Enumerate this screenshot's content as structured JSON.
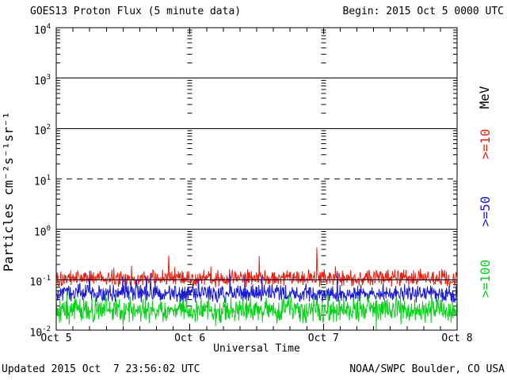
{
  "begin_label": "Begin: 2015 Oct 5 0000 UTC",
  "footer": {
    "updated": "Updated 2015 Oct  7 23:56:02 UTC",
    "source": "NOAA/SWPC Boulder, CO USA"
  },
  "chart_data": {
    "type": "line",
    "title": "GOES13 Proton Flux (5 minute data)",
    "xlabel": "Universal Time",
    "ylabel": "Particles cm⁻²s⁻¹sr⁻¹",
    "x_ticks": [
      "Oct 5",
      "Oct 6",
      "Oct 7",
      "Oct 8"
    ],
    "y_tick_exponents": [
      4,
      3,
      2,
      1,
      0,
      -1,
      -2
    ],
    "ylog_min": -2,
    "ylog_max": 4,
    "days": 3,
    "samples": 864,
    "cadence_minutes": 5,
    "x_minor_tick_hours": 3,
    "grid": {
      "solid_exponents": [
        3,
        2,
        0,
        -1
      ],
      "dashed_exponents": [
        1
      ],
      "day_gridline_style": "column-of-log-minor-dashes"
    },
    "legend": {
      "units": "MeV",
      "position": "right"
    },
    "series": [
      {
        "name": "p_gt10",
        "label": ">=10",
        "color": "#ed2010",
        "approx_log10_mean": -0.97,
        "approx_log10_spread": 0.2,
        "spike_prob": 0.04,
        "spike_log10": 0.3,
        "dip_prob": 0,
        "dip_log10": 0,
        "seed": 101
      },
      {
        "name": "p_gt50",
        "label": ">=50",
        "color": "#1a1ad2",
        "approx_log10_mean": -1.27,
        "approx_log10_spread": 0.21,
        "spike_prob": 0.03,
        "spike_log10": 0.45,
        "dip_prob": 0,
        "dip_log10": 0,
        "seed": 202
      },
      {
        "name": "p_gt100",
        "label": ">=100",
        "color": "#0bd01b",
        "approx_log10_mean": -1.6,
        "approx_log10_spread": 0.28,
        "spike_prob": 0.02,
        "spike_log10": 0.3,
        "dip_prob": 0.06,
        "dip_log10": 0.22,
        "seed": 303
      }
    ],
    "events": [
      {
        "series": "p_gt10",
        "day": 1.95,
        "log10_value": -0.36
      },
      {
        "series": "p_gt10",
        "day": 0.84,
        "log10_value": -0.52
      }
    ]
  }
}
